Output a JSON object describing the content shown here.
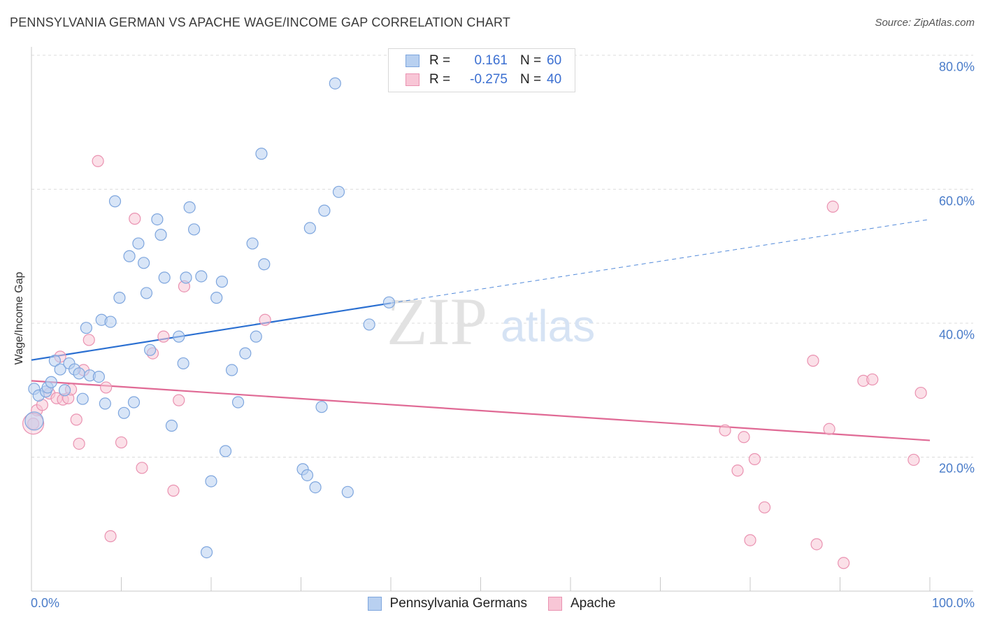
{
  "header": {
    "title": "PENNSYLVANIA GERMAN VS APACHE WAGE/INCOME GAP CORRELATION CHART",
    "source": "Source: ZipAtlas.com"
  },
  "watermark": {
    "zip": "ZIP",
    "atlas": "atlas"
  },
  "legend": {
    "rows": [
      {
        "r_label": "R =",
        "r_value": "0.161",
        "n_label": "N =",
        "n_value": "60"
      },
      {
        "r_label": "R =",
        "r_value": "-0.275",
        "n_label": "N =",
        "n_value": "40"
      }
    ]
  },
  "bottom_legend": {
    "series1": "Pennsylvania Germans",
    "series2": "Apache"
  },
  "axes": {
    "ylabel": "Wage/Income Gap",
    "y_ticks": [
      "20.0%",
      "40.0%",
      "60.0%",
      "80.0%"
    ],
    "x_min_label": "0.0%",
    "x_max_label": "100.0%"
  },
  "colors": {
    "blue_fill": "#b8d0f0",
    "blue_stroke": "#7ea6de",
    "blue_line": "#2a6fd1",
    "pink_fill": "#f8c6d6",
    "pink_stroke": "#ea92b1",
    "pink_line": "#e06a95",
    "tick_text": "#4a7cc9"
  },
  "chart_data": {
    "type": "scatter",
    "xlim": [
      0,
      100
    ],
    "ylim": [
      0,
      80
    ],
    "y_ticks": [
      20,
      40,
      60,
      80
    ],
    "grid": true,
    "legend_position": "top-center",
    "series": [
      {
        "name": "Pennsylvania Germans",
        "trend": {
          "x": [
            0,
            40
          ],
          "y": [
            34.5,
            43.0
          ],
          "dashed_extension_to": [
            100,
            55.5
          ]
        },
        "points": [
          [
            0.3,
            30.2
          ],
          [
            0.8,
            29.2
          ],
          [
            1.6,
            29.8
          ],
          [
            1.8,
            30.4
          ],
          [
            2.2,
            31.2
          ],
          [
            2.6,
            34.4
          ],
          [
            3.2,
            33.1
          ],
          [
            3.7,
            30.0
          ],
          [
            4.2,
            34.0
          ],
          [
            4.8,
            33.1
          ],
          [
            5.3,
            32.5
          ],
          [
            5.7,
            28.7
          ],
          [
            6.1,
            39.3
          ],
          [
            6.5,
            32.2
          ],
          [
            7.5,
            32.0
          ],
          [
            7.8,
            40.5
          ],
          [
            8.2,
            28.0
          ],
          [
            8.8,
            40.2
          ],
          [
            9.3,
            58.2
          ],
          [
            9.8,
            43.8
          ],
          [
            10.3,
            26.6
          ],
          [
            10.9,
            50.0
          ],
          [
            11.4,
            28.2
          ],
          [
            11.9,
            51.9
          ],
          [
            12.5,
            49.0
          ],
          [
            12.8,
            44.5
          ],
          [
            13.2,
            36.0
          ],
          [
            14.0,
            55.5
          ],
          [
            14.4,
            53.2
          ],
          [
            14.8,
            46.8
          ],
          [
            15.6,
            24.7
          ],
          [
            16.4,
            38.0
          ],
          [
            16.9,
            34.0
          ],
          [
            17.2,
            46.8
          ],
          [
            17.6,
            57.3
          ],
          [
            18.1,
            54.0
          ],
          [
            18.9,
            47.0
          ],
          [
            19.5,
            5.8
          ],
          [
            20.0,
            16.4
          ],
          [
            20.6,
            43.8
          ],
          [
            21.2,
            46.2
          ],
          [
            21.6,
            20.9
          ],
          [
            22.3,
            33.0
          ],
          [
            23.0,
            28.2
          ],
          [
            23.8,
            35.5
          ],
          [
            24.6,
            51.9
          ],
          [
            25.0,
            38.0
          ],
          [
            25.6,
            65.3
          ],
          [
            25.9,
            48.8
          ],
          [
            30.2,
            18.2
          ],
          [
            30.7,
            17.3
          ],
          [
            31.0,
            54.2
          ],
          [
            31.6,
            15.5
          ],
          [
            32.3,
            27.5
          ],
          [
            32.6,
            56.8
          ],
          [
            33.8,
            75.8
          ],
          [
            34.2,
            59.6
          ],
          [
            35.2,
            14.8
          ],
          [
            37.6,
            39.8
          ],
          [
            39.8,
            43.1
          ]
        ]
      },
      {
        "name": "Apache",
        "trend": {
          "x": [
            0,
            100
          ],
          "y": [
            31.4,
            22.5
          ]
        },
        "points": [
          [
            0.2,
            25.0
          ],
          [
            0.6,
            27.0
          ],
          [
            1.2,
            27.8
          ],
          [
            2.0,
            29.5
          ],
          [
            2.8,
            28.8
          ],
          [
            3.2,
            35.0
          ],
          [
            3.5,
            28.6
          ],
          [
            4.1,
            28.8
          ],
          [
            4.4,
            30.1
          ],
          [
            5.0,
            25.6
          ],
          [
            5.3,
            22.0
          ],
          [
            5.8,
            33.0
          ],
          [
            6.4,
            37.5
          ],
          [
            7.4,
            64.2
          ],
          [
            8.3,
            30.4
          ],
          [
            8.8,
            8.2
          ],
          [
            10.0,
            22.2
          ],
          [
            11.5,
            55.6
          ],
          [
            12.3,
            18.4
          ],
          [
            13.5,
            35.5
          ],
          [
            14.7,
            38.0
          ],
          [
            15.8,
            15.0
          ],
          [
            16.4,
            28.5
          ],
          [
            17.0,
            45.5
          ],
          [
            26.0,
            40.5
          ],
          [
            77.2,
            24.0
          ],
          [
            78.6,
            18.0
          ],
          [
            79.3,
            23.0
          ],
          [
            80.0,
            7.6
          ],
          [
            80.5,
            19.7
          ],
          [
            81.6,
            12.5
          ],
          [
            87.0,
            34.4
          ],
          [
            87.4,
            7.0
          ],
          [
            88.8,
            24.2
          ],
          [
            89.2,
            57.4
          ],
          [
            90.4,
            4.2
          ],
          [
            92.6,
            31.4
          ],
          [
            93.6,
            31.6
          ],
          [
            98.2,
            19.6
          ],
          [
            99.0,
            29.6
          ]
        ]
      }
    ]
  }
}
